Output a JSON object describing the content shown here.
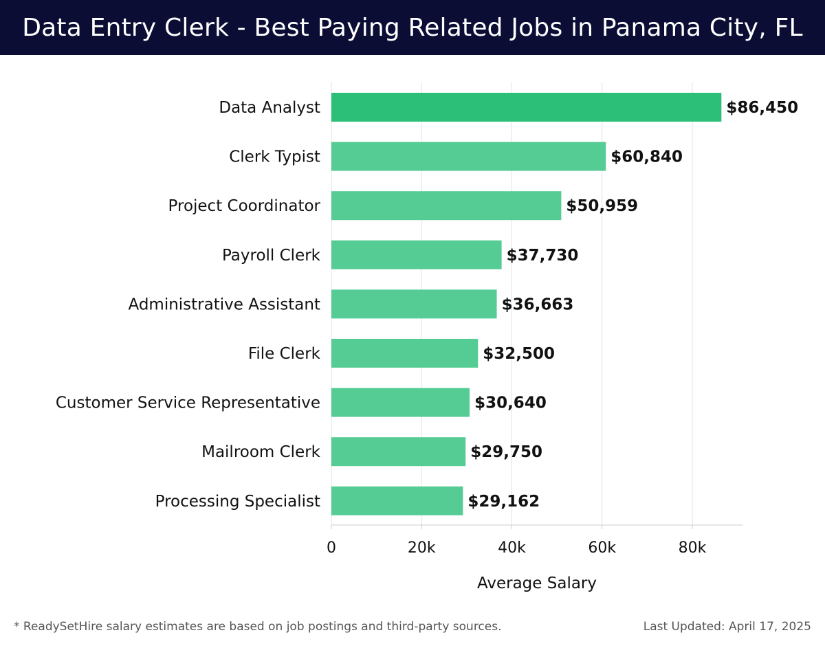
{
  "header": {
    "title": "Data Entry Clerk - Best Paying Related Jobs in Panama City, FL"
  },
  "chart_data": {
    "type": "bar",
    "orientation": "horizontal",
    "categories": [
      "Data Analyst",
      "Clerk Typist",
      "Project Coordinator",
      "Payroll Clerk",
      "Administrative Assistant",
      "File Clerk",
      "Customer Service Representative",
      "Mailroom Clerk",
      "Processing Specialist"
    ],
    "values": [
      86450,
      60840,
      50959,
      37730,
      36663,
      32500,
      30640,
      29750,
      29162
    ],
    "value_labels": [
      "$86,450",
      "$60,840",
      "$50,959",
      "$37,730",
      "$36,663",
      "$32,500",
      "$30,640",
      "$29,750",
      "$29,162"
    ],
    "xlabel": "Average Salary",
    "ylabel": "",
    "xlim": [
      0,
      90000
    ],
    "xticks": [
      0,
      20000,
      40000,
      60000,
      80000
    ],
    "xtick_labels": [
      "0",
      "20k",
      "40k",
      "60k",
      "80k"
    ],
    "grid": true,
    "colors": {
      "top_bar": "#2bbf77",
      "bar": "#56cc95",
      "text": "#111111",
      "grid": "#e3e3e3",
      "axis": "#cccccc"
    }
  },
  "footer": {
    "note": "* ReadySetHire salary estimates are based on job postings and third-party sources.",
    "updated": "Last Updated: April 17, 2025"
  }
}
